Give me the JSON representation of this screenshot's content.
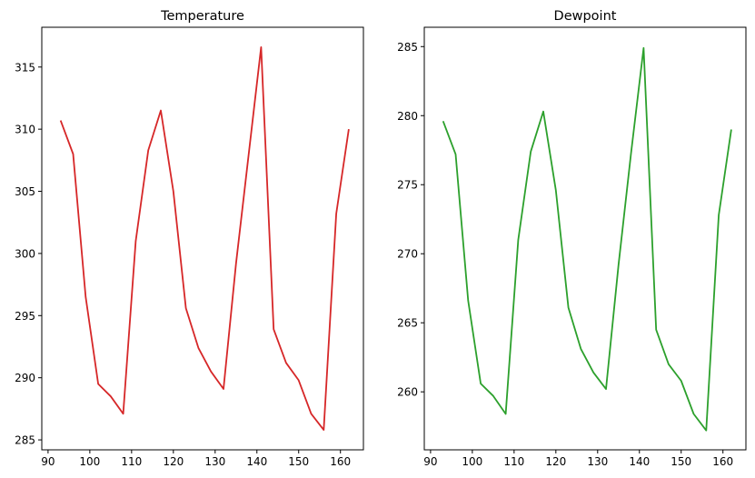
{
  "chart_data": [
    {
      "type": "line",
      "title": "Temperature",
      "xlabel": "",
      "ylabel": "",
      "xlim": [
        88.5,
        165.5
      ],
      "ylim": [
        284.2,
        318.2
      ],
      "xticks": [
        90,
        100,
        110,
        120,
        130,
        140,
        150,
        160
      ],
      "yticks": [
        285,
        290,
        295,
        300,
        305,
        310,
        315
      ],
      "grid": false,
      "color": "#d62728",
      "series": [
        {
          "x": [
            93,
            96,
            99,
            102,
            105,
            108,
            111,
            114,
            117,
            120,
            123,
            126,
            129,
            132,
            135,
            138,
            141,
            144,
            147,
            150,
            153,
            156,
            159,
            162
          ],
          "y": [
            310.7,
            308.0,
            296.5,
            289.5,
            288.5,
            287.1,
            301.0,
            308.3,
            311.5,
            305.0,
            295.6,
            292.4,
            290.5,
            289.1,
            299.2,
            307.9,
            316.6,
            293.9,
            291.2,
            289.8,
            287.1,
            285.8,
            303.2,
            310.0
          ]
        }
      ]
    },
    {
      "type": "line",
      "title": "Dewpoint",
      "xlabel": "",
      "ylabel": "",
      "xlim": [
        88.5,
        165.5
      ],
      "ylim": [
        255.8,
        286.4
      ],
      "xticks": [
        90,
        100,
        110,
        120,
        130,
        140,
        150,
        160
      ],
      "yticks": [
        260,
        265,
        270,
        275,
        280,
        285
      ],
      "grid": false,
      "color": "#2ca02c",
      "series": [
        {
          "x": [
            93,
            96,
            99,
            102,
            105,
            108,
            111,
            114,
            117,
            120,
            123,
            126,
            129,
            132,
            135,
            138,
            141,
            144,
            147,
            150,
            153,
            156,
            159,
            162
          ],
          "y": [
            279.6,
            277.2,
            266.6,
            260.6,
            259.7,
            258.4,
            271.0,
            277.4,
            280.3,
            274.6,
            266.1,
            263.1,
            261.4,
            260.2,
            269.2,
            277.3,
            284.9,
            264.5,
            262.0,
            260.8,
            258.4,
            257.2,
            272.8,
            279.0
          ]
        }
      ]
    }
  ]
}
